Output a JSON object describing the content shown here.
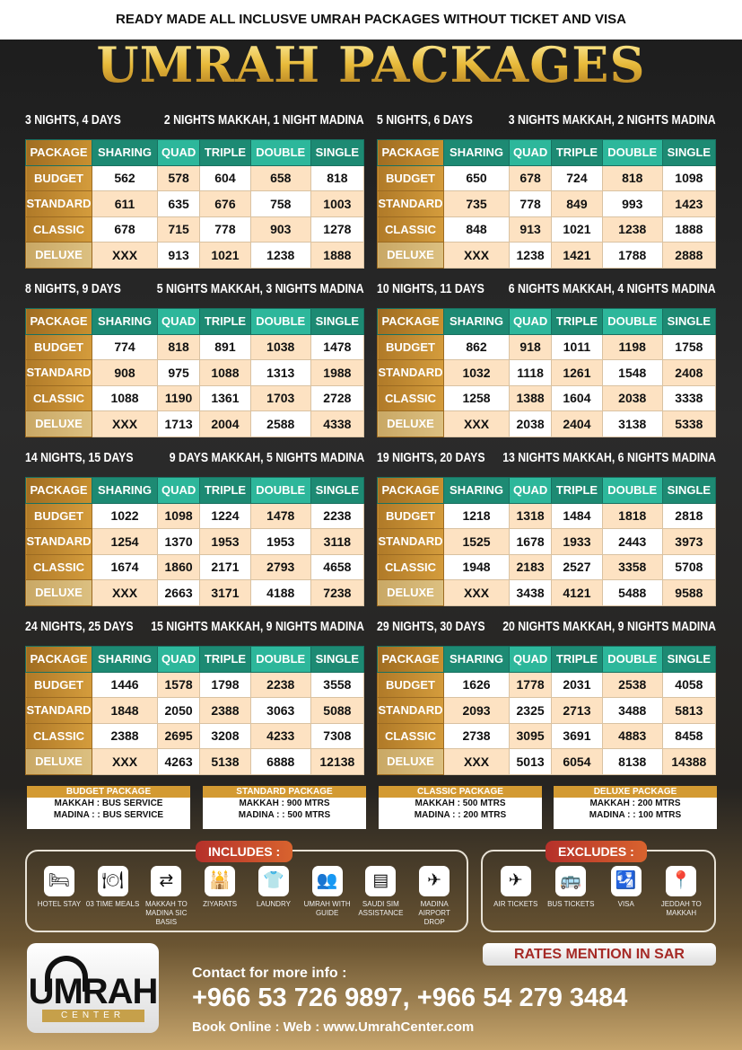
{
  "header": {
    "tagline": "READY MADE ALL INCLUSVE UMRAH PACKAGES WITHOUT TICKET AND VISA",
    "title": "UMRAH PACKAGES"
  },
  "columns": [
    "PACKAGE",
    "SHARING",
    "QUAD",
    "TRIPLE",
    "DOUBLE",
    "SINGLE"
  ],
  "row_labels": [
    "BUDGET",
    "STANDARD",
    "CLASSIC",
    "DELUXE"
  ],
  "packages": [
    {
      "duration": "3 NIGHTS, 4 DAYS",
      "split": "2 NIGHTS MAKKAH, 1 NIGHT MADINA",
      "rows": [
        [
          "562",
          "578",
          "604",
          "658",
          "818"
        ],
        [
          "611",
          "635",
          "676",
          "758",
          "1003"
        ],
        [
          "678",
          "715",
          "778",
          "903",
          "1278"
        ],
        [
          "XXX",
          "913",
          "1021",
          "1238",
          "1888"
        ]
      ]
    },
    {
      "duration": "5 NIGHTS, 6 DAYS",
      "split": "3 NIGHTS MAKKAH, 2 NIGHTS MADINA",
      "rows": [
        [
          "650",
          "678",
          "724",
          "818",
          "1098"
        ],
        [
          "735",
          "778",
          "849",
          "993",
          "1423"
        ],
        [
          "848",
          "913",
          "1021",
          "1238",
          "1888"
        ],
        [
          "XXX",
          "1238",
          "1421",
          "1788",
          "2888"
        ]
      ]
    },
    {
      "duration": "8 NIGHTS, 9 DAYS",
      "split": "5 NIGHTS  MAKKAH, 3 NIGHTS MADINA",
      "rows": [
        [
          "774",
          "818",
          "891",
          "1038",
          "1478"
        ],
        [
          "908",
          "975",
          "1088",
          "1313",
          "1988"
        ],
        [
          "1088",
          "1190",
          "1361",
          "1703",
          "2728"
        ],
        [
          "XXX",
          "1713",
          "2004",
          "2588",
          "4338"
        ]
      ]
    },
    {
      "duration": "10 NIGHTS, 11 DAYS",
      "split": "6 NIGHTS MAKKAH, 4 NIGHTS MADINA",
      "rows": [
        [
          "862",
          "918",
          "1011",
          "1198",
          "1758"
        ],
        [
          "1032",
          "1118",
          "1261",
          "1548",
          "2408"
        ],
        [
          "1258",
          "1388",
          "1604",
          "2038",
          "3338"
        ],
        [
          "XXX",
          "2038",
          "2404",
          "3138",
          "5338"
        ]
      ]
    },
    {
      "duration": "14 NIGHTS, 15 DAYS",
      "split": "9 DAYS MAKKAH, 5 NIGHTS MADINA",
      "rows": [
        [
          "1022",
          "1098",
          "1224",
          "1478",
          "2238"
        ],
        [
          "1254",
          "1370",
          "1953",
          "1953",
          "3118"
        ],
        [
          "1674",
          "1860",
          "2171",
          "2793",
          "4658"
        ],
        [
          "XXX",
          "2663",
          "3171",
          "4188",
          "7238"
        ]
      ]
    },
    {
      "duration": "19 NIGHTS, 20 DAYS",
      "split": "13 NIGHTS MAKKAH, 6 NIGHTS MADINA",
      "rows": [
        [
          "1218",
          "1318",
          "1484",
          "1818",
          "2818"
        ],
        [
          "1525",
          "1678",
          "1933",
          "2443",
          "3973"
        ],
        [
          "1948",
          "2183",
          "2527",
          "3358",
          "5708"
        ],
        [
          "XXX",
          "3438",
          "4121",
          "5488",
          "9588"
        ]
      ]
    },
    {
      "duration": "24 NIGHTS, 25 DAYS",
      "split": "15 NIGHTS MAKKAH, 9 NIGHTS MADINA",
      "rows": [
        [
          "1446",
          "1578",
          "1798",
          "2238",
          "3558"
        ],
        [
          "1848",
          "2050",
          "2388",
          "3063",
          "5088"
        ],
        [
          "2388",
          "2695",
          "3208",
          "4233",
          "7308"
        ],
        [
          "XXX",
          "4263",
          "5138",
          "6888",
          "12138"
        ]
      ]
    },
    {
      "duration": "29 NIGHTS, 30 DAYS",
      "split": "20 NIGHTS MAKKAH, 9 NIGHTS MADINA",
      "rows": [
        [
          "1626",
          "1778",
          "2031",
          "2538",
          "4058"
        ],
        [
          "2093",
          "2325",
          "2713",
          "3488",
          "5813"
        ],
        [
          "2738",
          "3095",
          "3691",
          "4883",
          "8458"
        ],
        [
          "XXX",
          "5013",
          "6054",
          "8138",
          "14388"
        ]
      ]
    }
  ],
  "hotel_distance": [
    {
      "title": "BUDGET PACKAGE",
      "makkah": "MAKKAH : BUS SERVICE",
      "madina": "MADINA : : BUS SERVICE"
    },
    {
      "title": "STANDARD PACKAGE",
      "makkah": "MAKKAH : 900 MTRS",
      "madina": "MADINA : : 500 MTRS"
    },
    {
      "title": "CLASSIC PACKAGE",
      "makkah": "MAKKAH : 500 MTRS",
      "madina": "MADINA : : 200 MTRS"
    },
    {
      "title": "DELUXE PACKAGE",
      "makkah": "MAKKAH : 200 MTRS",
      "madina": "MADINA : : 100 MTRS"
    }
  ],
  "includes": {
    "title": "INCLUDES :",
    "items": [
      {
        "icon": "bed-icon",
        "glyph": "🛏",
        "label": "HOTEL STAY"
      },
      {
        "icon": "meal-cloche-icon",
        "glyph": "🍽",
        "label": "03 TIME MEALS"
      },
      {
        "icon": "transfer-icon",
        "glyph": "⇄",
        "label": "MAKKAH TO MADINA SIC BASIS"
      },
      {
        "icon": "mosque-icon",
        "glyph": "🕌",
        "label": "ZIYARATS"
      },
      {
        "icon": "laundry-icon",
        "glyph": "👕",
        "label": "LAUNDRY"
      },
      {
        "icon": "guide-icon",
        "glyph": "👥",
        "label": "UMRAH WITH GUIDE"
      },
      {
        "icon": "sim-card-icon",
        "glyph": "▤",
        "label": "SAUDI SIM ASSISTANCE"
      },
      {
        "icon": "airport-icon",
        "glyph": "✈",
        "label": "MADINA AIRPORT DROP"
      }
    ]
  },
  "excludes": {
    "title": "EXCLUDES :",
    "items": [
      {
        "icon": "airplane-icon",
        "glyph": "✈",
        "label": "AIR TICKETS"
      },
      {
        "icon": "bus-icon",
        "glyph": "🚌",
        "label": "BUS TICKETS"
      },
      {
        "icon": "passport-icon",
        "glyph": "🛂",
        "label": "VISA"
      },
      {
        "icon": "route-pin-icon",
        "glyph": "📍",
        "label": "JEDDAH TO MAKKAH"
      }
    ]
  },
  "logo": {
    "name": "UMRAH",
    "sub": "CENTER"
  },
  "rates_note": "RATES MENTION IN SAR",
  "contact": {
    "label": "Contact for more info :",
    "phones": "+966 53 726 9897, +966 54 279 3484",
    "web": "Book Online : Web : www.UmrahCenter.com"
  },
  "colors": {
    "gold": "#c8902f",
    "teal": "#1d8a73",
    "teal_light": "#2db79b",
    "cell_cream": "#fde2c2",
    "badge_red": "#b5302a"
  }
}
